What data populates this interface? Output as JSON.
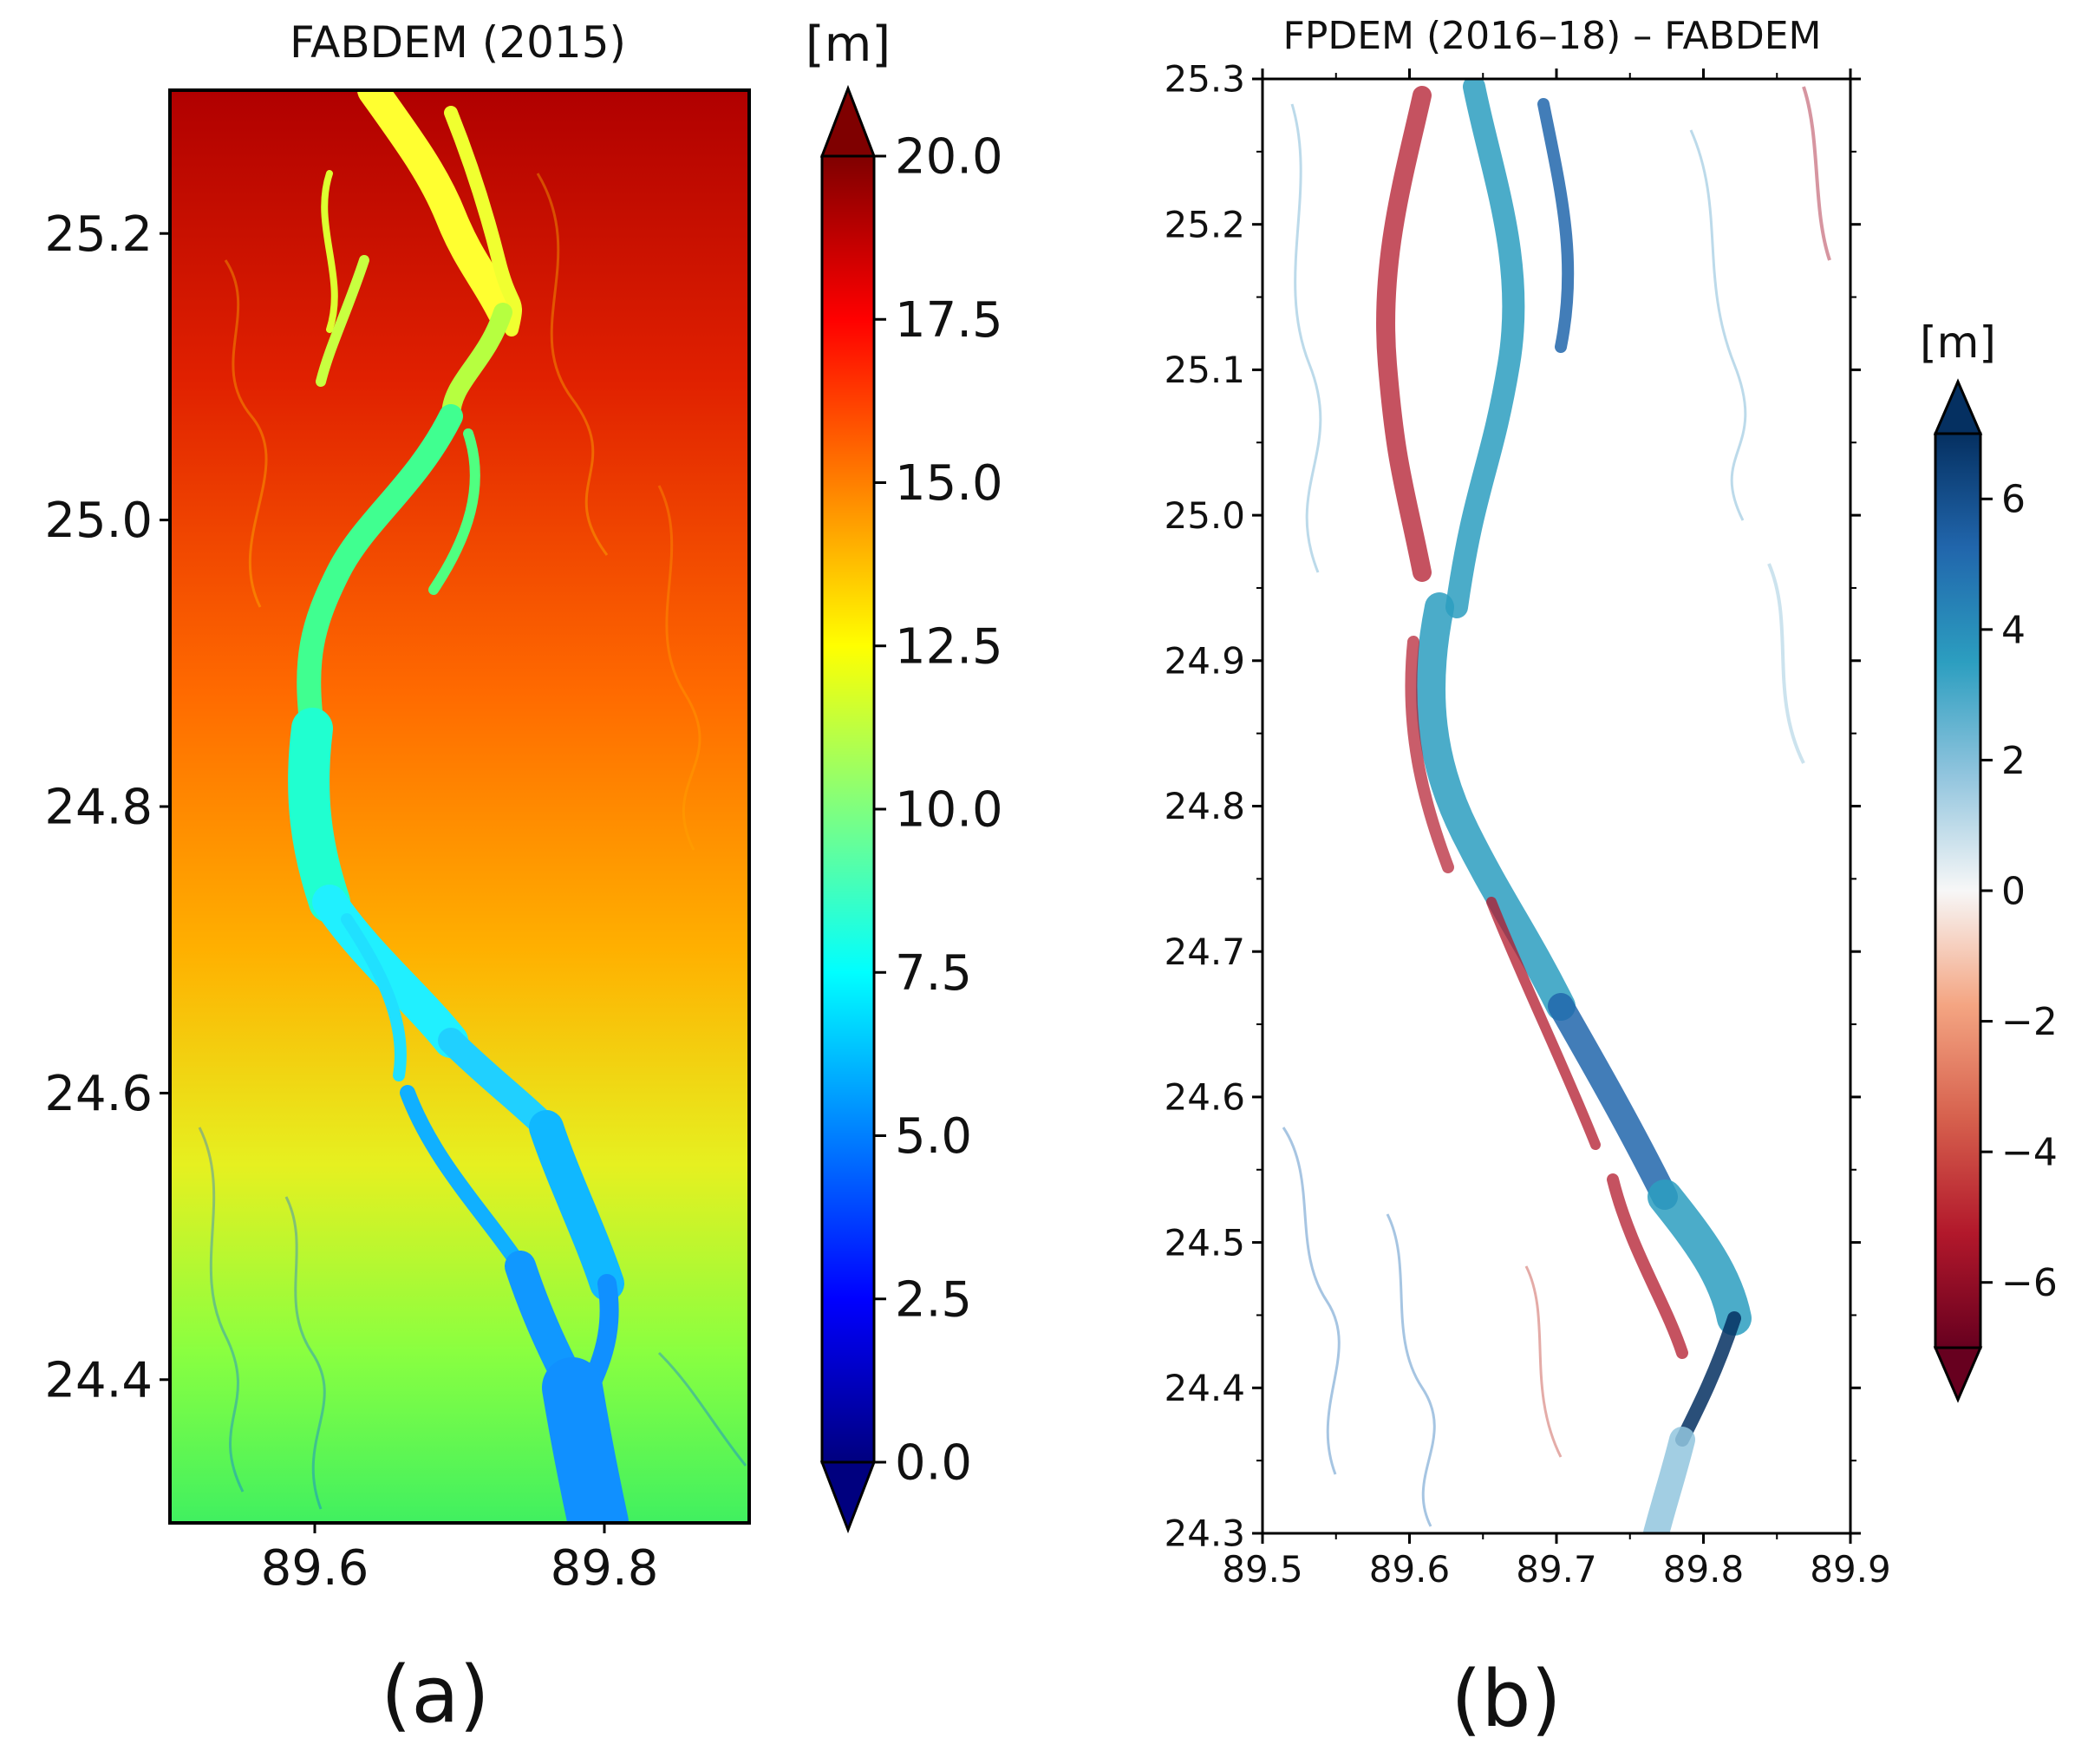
{
  "chart_data": [
    {
      "type": "heatmap",
      "title": "FABDEM (2015)",
      "panel_label": "(a)",
      "xlim": [
        89.5,
        89.9
      ],
      "ylim": [
        24.3,
        25.3
      ],
      "xticks": [
        "89.6",
        "89.8"
      ],
      "xtick_values": [
        89.6,
        89.8
      ],
      "yticks": [
        "24.4",
        "24.6",
        "24.8",
        "25.0",
        "25.2"
      ],
      "ytick_values": [
        24.4,
        24.6,
        24.8,
        25.0,
        25.2
      ],
      "grid": false,
      "colorbar": {
        "unit_label": "[m]",
        "cmap": "jet",
        "range": [
          0.0,
          20.0
        ],
        "extend": "both",
        "ticks": [
          "0.0",
          "2.5",
          "5.0",
          "7.5",
          "10.0",
          "12.5",
          "15.0",
          "17.5",
          "20.0"
        ],
        "tick_values": [
          0.0,
          2.5,
          5.0,
          7.5,
          10.0,
          12.5,
          15.0,
          17.5,
          20.0
        ],
        "colors": [
          "#00007f",
          "#0000ff",
          "#007fff",
          "#00ffff",
          "#7fff7f",
          "#ffff00",
          "#ff7f00",
          "#ff0000",
          "#7f0000"
        ]
      }
    },
    {
      "type": "heatmap",
      "title": "FPDEM (2016–18) – FABDEM",
      "panel_label": "(b)",
      "xlim": [
        89.5,
        89.9
      ],
      "ylim": [
        24.3,
        25.3
      ],
      "xticks": [
        "89.5",
        "89.6",
        "89.7",
        "89.8",
        "89.9"
      ],
      "xtick_values": [
        89.5,
        89.6,
        89.7,
        89.8,
        89.9
      ],
      "yticks": [
        "24.3",
        "24.4",
        "24.5",
        "24.6",
        "24.7",
        "24.8",
        "24.9",
        "25.0",
        "25.1",
        "25.2",
        "25.3"
      ],
      "ytick_values": [
        24.3,
        24.4,
        24.5,
        24.6,
        24.7,
        24.8,
        24.9,
        25.0,
        25.1,
        25.2,
        25.3
      ],
      "grid": false,
      "colorbar": {
        "unit_label": "[m]",
        "cmap": "RdBu",
        "range": [
          -7,
          7
        ],
        "extend": "both",
        "ticks": [
          "−6",
          "−4",
          "−2",
          "0",
          "2",
          "4",
          "6"
        ],
        "tick_values": [
          -6,
          -4,
          -2,
          0,
          2,
          4,
          6
        ],
        "colors": [
          "#67001f",
          "#b2182b",
          "#d6604d",
          "#f4a582",
          "#f7f7f7",
          "#92c5de",
          "#2c9ec0",
          "#2166ac",
          "#053061"
        ]
      }
    }
  ]
}
